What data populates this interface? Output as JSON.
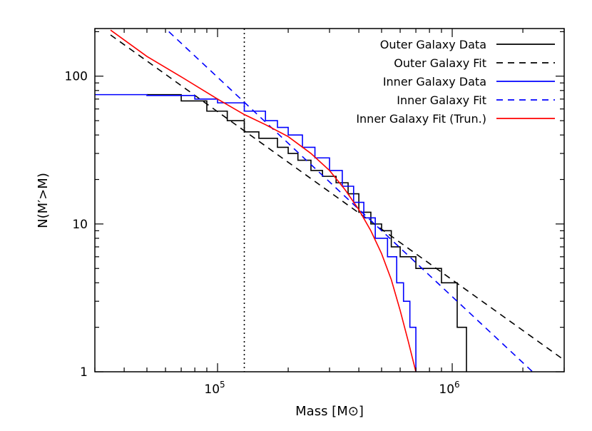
{
  "chart_data": {
    "type": "line",
    "title": "",
    "xlabel": "Mass [M⊙]",
    "ylabel": "N(M′>M)",
    "xscale": "log",
    "yscale": "log",
    "xlim": [
      30000,
      3000000
    ],
    "ylim": [
      1,
      210
    ],
    "x_ticks": [
      {
        "value": 100000,
        "label": "10",
        "exp": "5"
      },
      {
        "value": 1000000,
        "label": "10",
        "exp": "6"
      }
    ],
    "y_ticks": [
      {
        "value": 1,
        "label": "1"
      },
      {
        "value": 10,
        "label": "10"
      },
      {
        "value": 100,
        "label": "100"
      }
    ],
    "vline": {
      "x": 130000,
      "style": "dotted",
      "color": "#000000"
    },
    "legend_position": "top-right",
    "series": [
      {
        "name": "Outer Galaxy Data",
        "color": "#000000",
        "dash": "solid",
        "render": "step",
        "points": [
          [
            50000,
            75
          ],
          [
            70000,
            68
          ],
          [
            90000,
            58
          ],
          [
            110000,
            50
          ],
          [
            130000,
            42
          ],
          [
            150000,
            38
          ],
          [
            180000,
            33
          ],
          [
            200000,
            30
          ],
          [
            220000,
            27
          ],
          [
            250000,
            23
          ],
          [
            280000,
            21
          ],
          [
            320000,
            19
          ],
          [
            360000,
            16
          ],
          [
            400000,
            12
          ],
          [
            450000,
            10
          ],
          [
            500000,
            9
          ],
          [
            550000,
            7
          ],
          [
            600000,
            6
          ],
          [
            700000,
            5
          ],
          [
            900000,
            4
          ],
          [
            1050000,
            2
          ],
          [
            1150000,
            1
          ]
        ]
      },
      {
        "name": "Outer Galaxy Fit",
        "color": "#000000",
        "dash": "dashed",
        "render": "line",
        "points": [
          [
            35000,
            190
          ],
          [
            3000000,
            1.2
          ]
        ]
      },
      {
        "name": "Inner Galaxy Data",
        "color": "#0000ff",
        "dash": "solid",
        "render": "step",
        "points": [
          [
            30000,
            75
          ],
          [
            50000,
            74
          ],
          [
            80000,
            70
          ],
          [
            100000,
            66
          ],
          [
            130000,
            58
          ],
          [
            160000,
            50
          ],
          [
            180000,
            45
          ],
          [
            200000,
            40
          ],
          [
            230000,
            33
          ],
          [
            260000,
            28
          ],
          [
            300000,
            23
          ],
          [
            340000,
            18
          ],
          [
            380000,
            14
          ],
          [
            420000,
            11
          ],
          [
            470000,
            8
          ],
          [
            530000,
            6
          ],
          [
            580000,
            4
          ],
          [
            620000,
            3
          ],
          [
            660000,
            2
          ],
          [
            700000,
            1
          ]
        ]
      },
      {
        "name": "Inner Galaxy Fit",
        "color": "#0000ff",
        "dash": "dashed",
        "render": "line",
        "points": [
          [
            62000,
            200
          ],
          [
            2200000,
            1
          ]
        ]
      },
      {
        "name": "Inner Galaxy Fit (Trun.)",
        "color": "#ff0000",
        "dash": "solid",
        "render": "line",
        "points": [
          [
            35000,
            205
          ],
          [
            50000,
            136
          ],
          [
            70000,
            99
          ],
          [
            100000,
            70
          ],
          [
            130000,
            55
          ],
          [
            160000,
            47
          ],
          [
            200000,
            39
          ],
          [
            250000,
            30
          ],
          [
            300000,
            23
          ],
          [
            350000,
            17
          ],
          [
            400000,
            12.5
          ],
          [
            450000,
            9
          ],
          [
            500000,
            6.3
          ],
          [
            550000,
            4.2
          ],
          [
            600000,
            2.6
          ],
          [
            650000,
            1.6
          ],
          [
            680000,
            1.2
          ],
          [
            700000,
            1
          ]
        ]
      }
    ]
  }
}
